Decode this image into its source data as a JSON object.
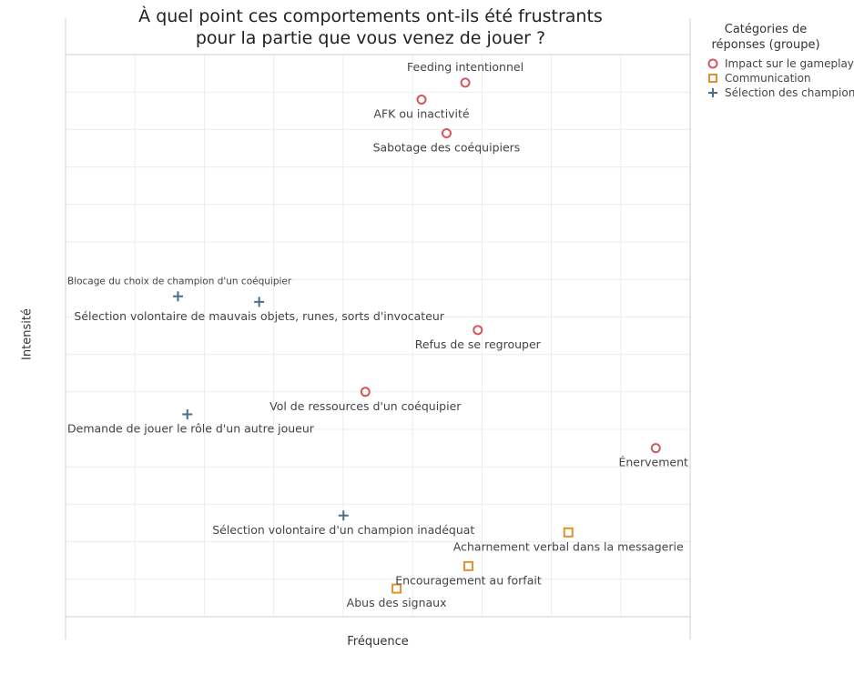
{
  "chart_data": {
    "type": "scatter",
    "title": "À quel point ces comportements ont-ils été frustrants\npour la partie que vous venez de jouer ?",
    "xlabel": "Fréquence",
    "ylabel": "Intensité",
    "xlim": [
      0,
      100
    ],
    "ylim": [
      0,
      100
    ],
    "grid": true,
    "legend": {
      "title": "Catégories de réponses (groupe)",
      "position": "right",
      "entries": [
        {
          "name": "Impact sur le gameplay",
          "marker": "circle",
          "color": "#d1595e"
        },
        {
          "name": "Communication",
          "marker": "square",
          "color": "#e3912f"
        },
        {
          "name": "Sélection des champions",
          "marker": "plus",
          "color": "#4a6d8c"
        }
      ]
    },
    "points": [
      {
        "label": "Feeding intentionnel",
        "category": "Impact sur le gameplay",
        "x": 64,
        "y": 95,
        "label_pos": "above"
      },
      {
        "label": "AFK ou inactivité",
        "category": "Impact sur le gameplay",
        "x": 57,
        "y": 92,
        "label_pos": "below"
      },
      {
        "label": "Sabotage des coéquipiers",
        "category": "Impact sur le gameplay",
        "x": 61,
        "y": 86,
        "label_pos": "below"
      },
      {
        "label": "Blocage du choix de champion d'un coéquipier",
        "category": "Sélection des champions",
        "x": 18,
        "y": 57,
        "label_pos": "above",
        "small": true
      },
      {
        "label": "Sélection volontaire de mauvais objets, runes, sorts d'invocateur",
        "category": "Sélection des champions",
        "x": 31,
        "y": 56,
        "label_pos": "below"
      },
      {
        "label": "Refus de se regrouper",
        "category": "Impact sur le gameplay",
        "x": 66,
        "y": 51,
        "label_pos": "below"
      },
      {
        "label": "Vol de ressources d'un coéquipier",
        "category": "Impact sur le gameplay",
        "x": 48,
        "y": 40,
        "label_pos": "below"
      },
      {
        "label": "Demande de jouer le rôle d'un autre joueur",
        "category": "Sélection des champions",
        "x": 19.5,
        "y": 36,
        "label_pos": "below"
      },
      {
        "label": "Énervement",
        "category": "Impact sur le gameplay",
        "x": 94.5,
        "y": 30,
        "label_pos": "below"
      },
      {
        "label": "Sélection volontaire d'un champion inadéquat",
        "category": "Sélection des champions",
        "x": 44.5,
        "y": 18,
        "label_pos": "below"
      },
      {
        "label": "Acharnement verbal dans la messagerie",
        "category": "Communication",
        "x": 80.5,
        "y": 15,
        "label_pos": "below"
      },
      {
        "label": "Encouragement au forfait",
        "category": "Communication",
        "x": 64.5,
        "y": 9,
        "label_pos": "below"
      },
      {
        "label": "Abus des signaux",
        "category": "Communication",
        "x": 53,
        "y": 5,
        "label_pos": "below"
      }
    ]
  }
}
